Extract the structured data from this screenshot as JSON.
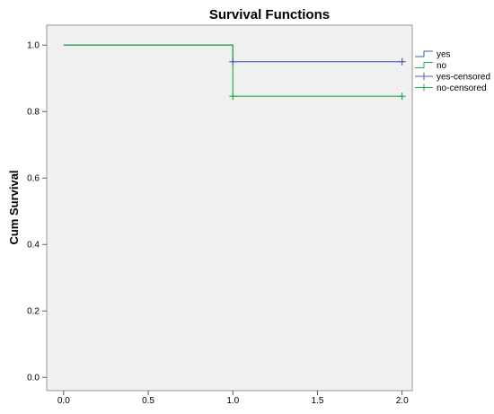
{
  "chart_data": {
    "type": "line",
    "title": "Survival Functions",
    "xlabel": "",
    "ylabel": "Cum Survival",
    "xlim": [
      -0.1,
      2.06
    ],
    "ylim": [
      -0.04,
      1.06
    ],
    "xticks": [
      0.0,
      0.5,
      1.0,
      1.5,
      2.0
    ],
    "xtick_labels": [
      "0.0",
      "0.5",
      "1.0",
      "1.5",
      "2.0"
    ],
    "yticks": [
      0.0,
      0.2,
      0.4,
      0.6,
      0.8,
      1.0
    ],
    "ytick_labels": [
      "0.0",
      "0.2",
      "0.4",
      "0.6",
      "0.8",
      "1.0"
    ],
    "grid": false,
    "background_color": "#f0f0f0",
    "legend_position": "top-right outside",
    "series": [
      {
        "name": "yes",
        "style": "step",
        "color": "#4a5fa8",
        "x": [
          0.0,
          1.0,
          2.0
        ],
        "y": [
          1.0,
          0.95,
          0.95
        ]
      },
      {
        "name": "no",
        "style": "step",
        "color": "#22aa44",
        "x": [
          0.0,
          1.0,
          2.0
        ],
        "y": [
          1.0,
          0.846,
          0.846
        ]
      },
      {
        "name": "yes-censored",
        "style": "censored",
        "color": "#4a5fa8",
        "x": [
          1.0,
          2.0
        ],
        "y": [
          0.95,
          0.95
        ]
      },
      {
        "name": "no-censored",
        "style": "censored",
        "color": "#22aa44",
        "x": [
          1.0,
          2.0
        ],
        "y": [
          0.846,
          0.846
        ]
      }
    ]
  }
}
